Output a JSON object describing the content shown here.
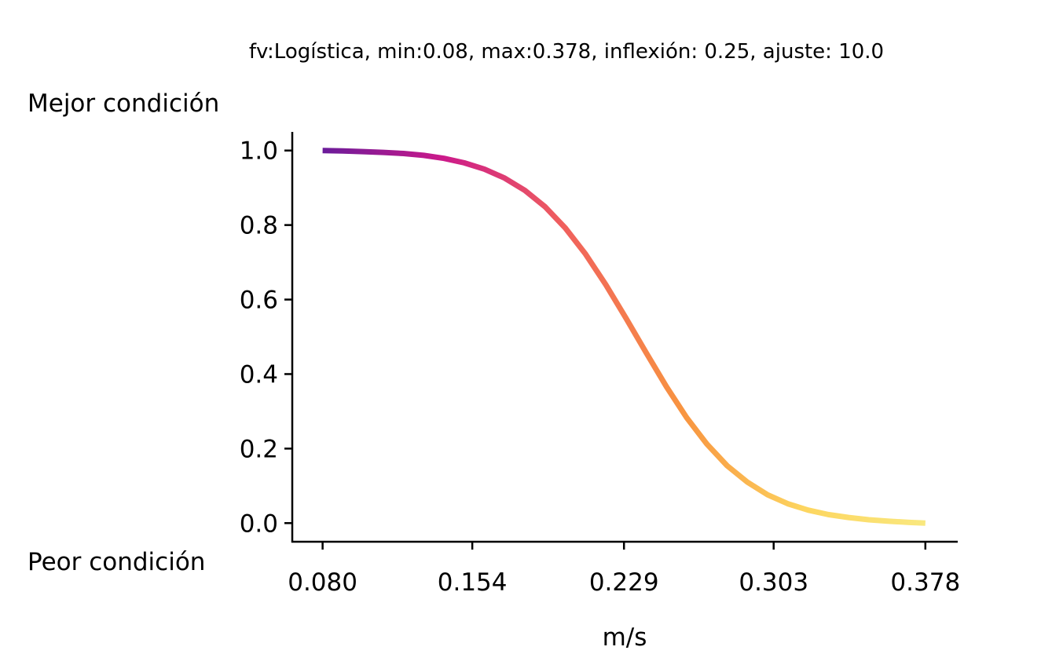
{
  "chart_data": {
    "type": "line",
    "title": "fv:Logística, min:0.08, max:0.378, inflexión: 0.25, ajuste: 10.0",
    "xlabel": "m/s",
    "ylabel_top": "Mejor condición",
    "ylabel_bottom": "Peor condición",
    "xlim": [
      0.065,
      0.394
    ],
    "ylim": [
      -0.05,
      1.05
    ],
    "x_ticks": [
      0.08,
      0.154,
      0.229,
      0.303,
      0.378
    ],
    "x_tick_labels": [
      "0.080",
      "0.154",
      "0.229",
      "0.303",
      "0.378"
    ],
    "y_ticks": [
      0.0,
      0.2,
      0.4,
      0.6,
      0.8,
      1.0
    ],
    "y_tick_labels": [
      "0.0",
      "0.2",
      "0.4",
      "0.6",
      "0.8",
      "1.0"
    ],
    "grid": false,
    "colormap": "plasma",
    "color_range": [
      0.08,
      0.378
    ],
    "colors": [
      "#6a1b9a",
      "#cc1a8a",
      "#f0605d",
      "#f89540",
      "#fdd660",
      "#f9e87f"
    ],
    "series": [
      {
        "x": [
          0.08,
          0.09,
          0.1,
          0.11,
          0.12,
          0.13,
          0.14,
          0.15,
          0.16,
          0.17,
          0.18,
          0.19,
          0.2,
          0.21,
          0.22,
          0.23,
          0.24,
          0.25,
          0.26,
          0.27,
          0.28,
          0.29,
          0.3,
          0.31,
          0.32,
          0.33,
          0.34,
          0.35,
          0.36,
          0.37,
          0.378
        ],
        "y": [
          1.0,
          0.999,
          0.997,
          0.995,
          0.992,
          0.987,
          0.979,
          0.967,
          0.95,
          0.926,
          0.893,
          0.849,
          0.792,
          0.722,
          0.64,
          0.55,
          0.457,
          0.366,
          0.283,
          0.212,
          0.154,
          0.11,
          0.076,
          0.052,
          0.035,
          0.023,
          0.015,
          0.009,
          0.005,
          0.002,
          0.0
        ]
      }
    ]
  }
}
